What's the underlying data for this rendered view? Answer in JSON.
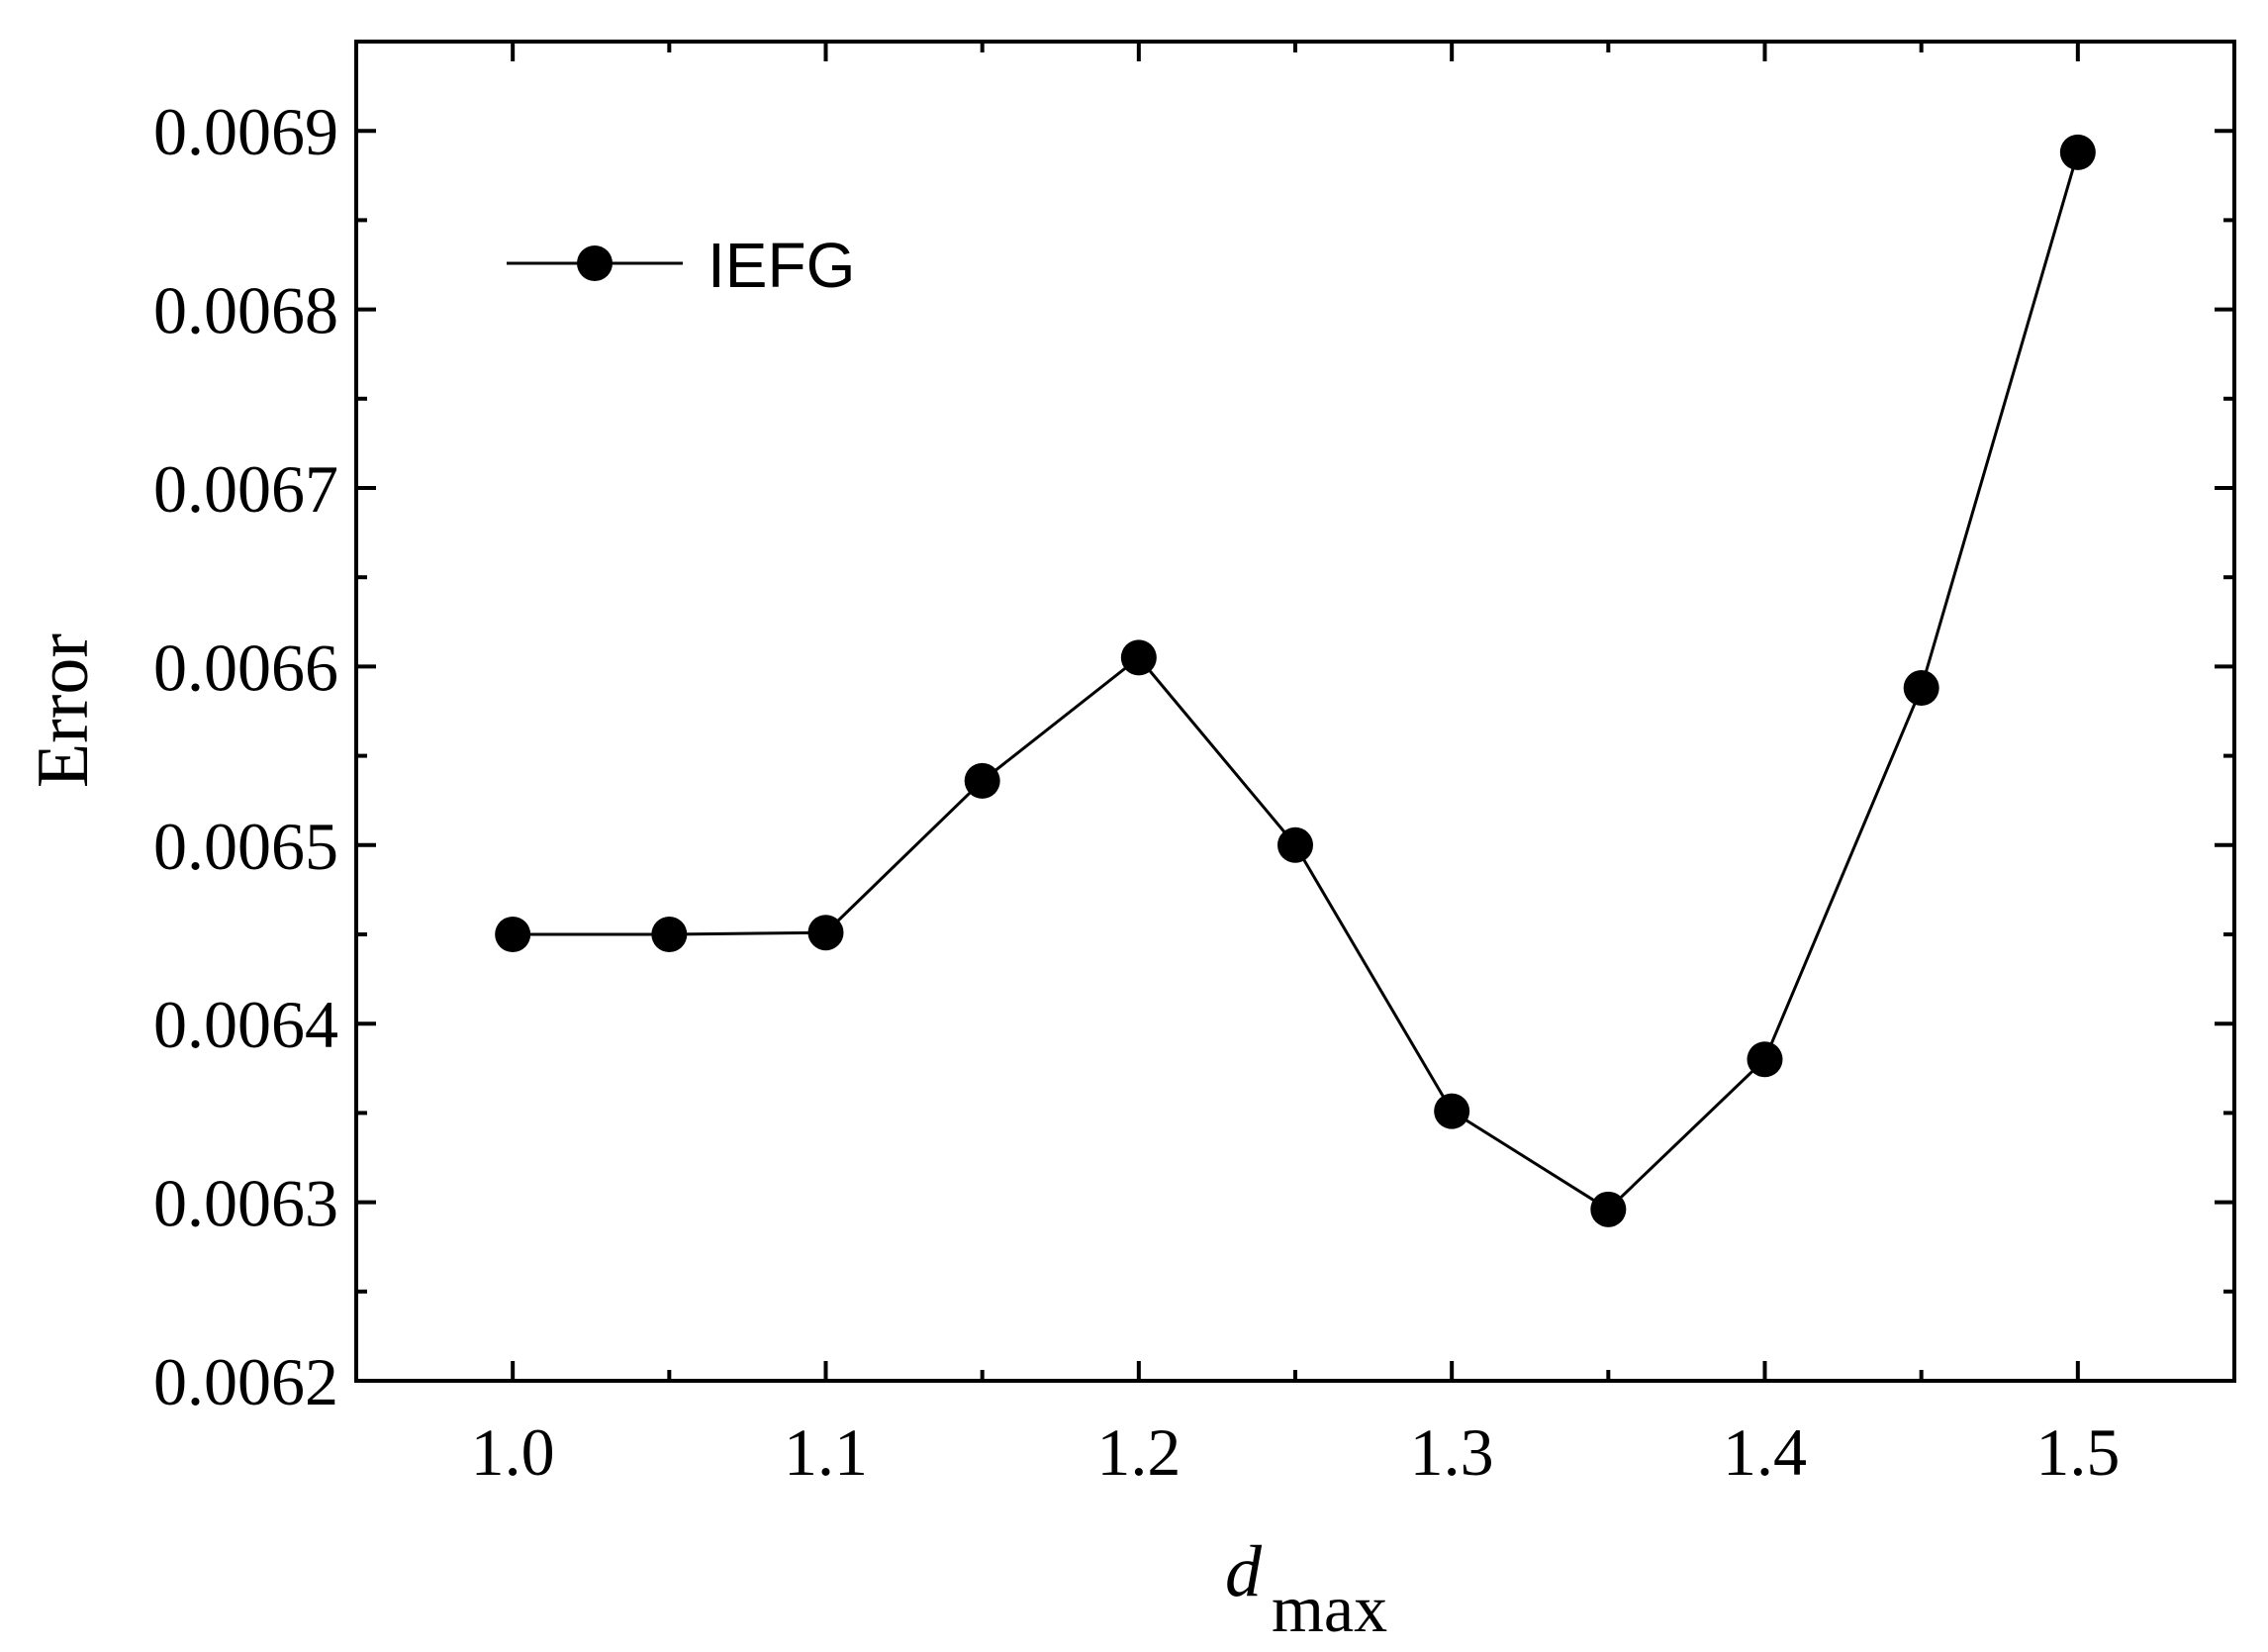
{
  "chart_data": {
    "type": "line",
    "xlabel": "d",
    "xlabel_sub": "max",
    "ylabel": "Error",
    "xlim": [
      0.95,
      1.55
    ],
    "ylim": [
      0.0062,
      0.00695
    ],
    "x_ticks": [
      1.0,
      1.1,
      1.2,
      1.3,
      1.4,
      1.5
    ],
    "x_tick_labels": [
      "1.0",
      "1.1",
      "1.2",
      "1.3",
      "1.4",
      "1.5"
    ],
    "y_ticks": [
      0.0062,
      0.0063,
      0.0064,
      0.0065,
      0.0066,
      0.0067,
      0.0068,
      0.0069
    ],
    "y_tick_labels": [
      "0.0062",
      "0.0063",
      "0.0064",
      "0.0065",
      "0.0066",
      "0.0067",
      "0.0068",
      "0.0069"
    ],
    "grid": false,
    "legend_position": "top-left",
    "series": [
      {
        "name": "IEFG",
        "color": "#000000",
        "marker": "circle",
        "x": [
          1.0,
          1.05,
          1.1,
          1.15,
          1.2,
          1.25,
          1.3,
          1.35,
          1.4,
          1.45,
          1.5
        ],
        "y": [
          0.00645,
          0.00645,
          0.006451,
          0.006536,
          0.006605,
          0.0065,
          0.006351,
          0.006296,
          0.00638,
          0.006588,
          0.006888
        ]
      }
    ]
  }
}
